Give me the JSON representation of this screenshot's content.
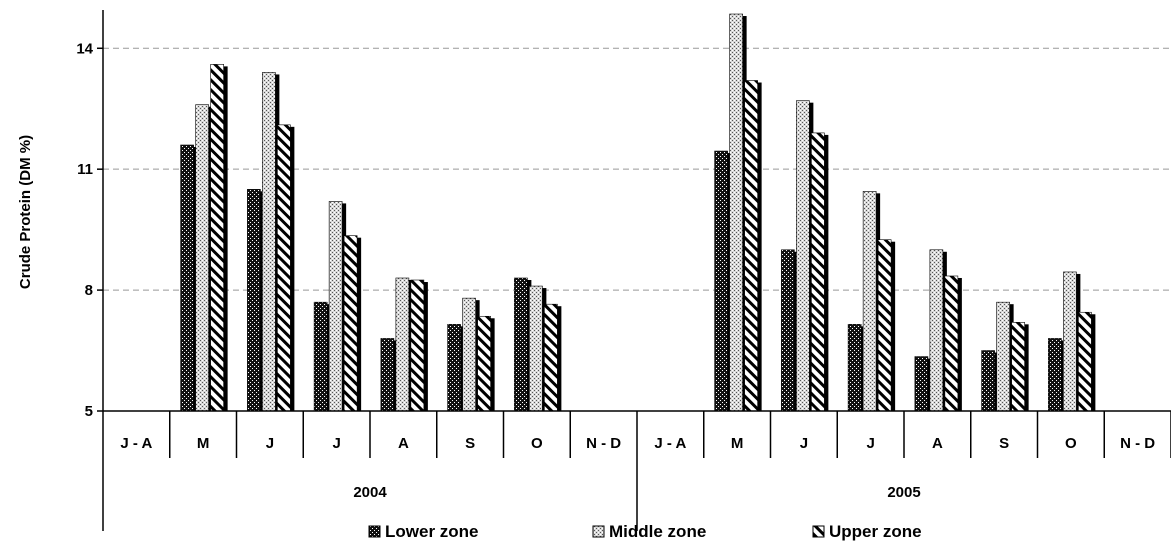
{
  "chart_data": {
    "type": "bar",
    "ylabel": "Crude Protein (DM %)",
    "ylim": [
      5,
      14.9
    ],
    "yticks": [
      5,
      8,
      11,
      14
    ],
    "grid": "horizontal dashed at 8, 11, 14",
    "legend_position": "bottom",
    "groups": [
      {
        "label": "2004",
        "categories": [
          "J - A",
          "M",
          "J",
          "J",
          "A",
          "S",
          "O",
          "N - D"
        ]
      },
      {
        "label": "2005",
        "categories": [
          "J - A",
          "M",
          "J",
          "J",
          "A",
          "S",
          "O",
          "N - D"
        ]
      }
    ],
    "series": [
      {
        "name": "Lower zone",
        "values": [
          null,
          11.6,
          10.5,
          7.7,
          6.8,
          7.15,
          8.3,
          null,
          null,
          11.45,
          9.0,
          7.15,
          6.35,
          6.5,
          6.8,
          null
        ],
        "color": "#1a1a1a"
      },
      {
        "name": "Middle zone",
        "values": [
          null,
          12.6,
          13.4,
          10.2,
          8.3,
          7.8,
          8.1,
          null,
          null,
          14.85,
          12.7,
          10.45,
          9.0,
          7.7,
          8.45,
          null
        ],
        "color": "#c8c8c8"
      },
      {
        "name": "Upper zone",
        "values": [
          null,
          13.6,
          12.1,
          9.35,
          8.25,
          7.35,
          7.65,
          null,
          null,
          13.2,
          11.9,
          9.25,
          8.35,
          7.2,
          7.45,
          null
        ],
        "color": "#ffffff"
      }
    ]
  }
}
